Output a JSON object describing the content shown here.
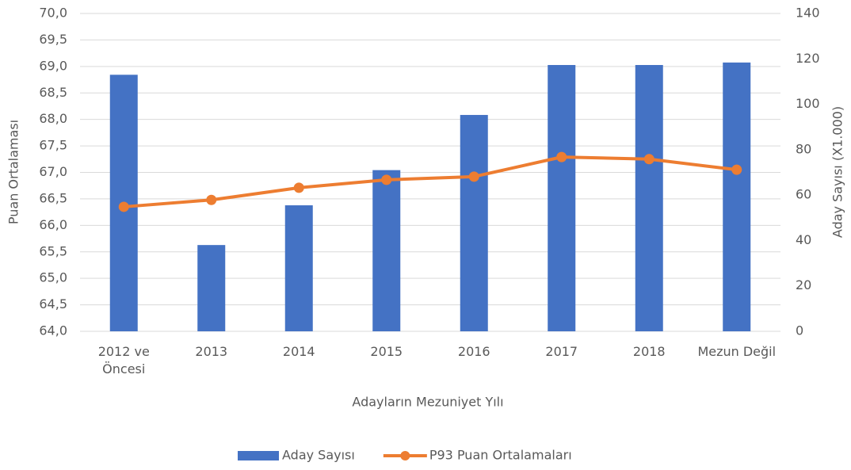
{
  "chart_data": {
    "type": "combo",
    "xlabel": "Adayların Mezuniyet Yılı",
    "ylabel": "Puan Ortalaması",
    "y2label": "Aday Sayısı (X1.000)",
    "categories": [
      "2012 ve Öncesi",
      "2013",
      "2014",
      "2015",
      "2016",
      "2017",
      "2018",
      "Mezun Değil"
    ],
    "series": [
      {
        "name": "Aday Sayısı",
        "type": "bar",
        "axis": "y2",
        "color": "#4472c4",
        "values": [
          113,
          38,
          55.5,
          71,
          95.3,
          117.3,
          117.3,
          118.4
        ]
      },
      {
        "name": "P93 Puan Ortalamaları",
        "type": "line",
        "color": "#ed7d31",
        "values": [
          66.35,
          66.48,
          66.71,
          66.86,
          66.92,
          67.29,
          67.25,
          67.05
        ]
      }
    ],
    "ylim": [
      64,
      70
    ],
    "yticks": [
      {
        "value": 64,
        "label": "64,0"
      },
      {
        "value": 64.5,
        "label": "64,5"
      },
      {
        "value": 65,
        "label": "65,0"
      },
      {
        "value": 65.5,
        "label": "65,5"
      },
      {
        "value": 66,
        "label": "66,0"
      },
      {
        "value": 66.5,
        "label": "66,5"
      },
      {
        "value": 67,
        "label": "67,0"
      },
      {
        "value": 67.5,
        "label": "67,5"
      },
      {
        "value": 68,
        "label": "68,0"
      },
      {
        "value": 68.5,
        "label": "68,5"
      },
      {
        "value": 69,
        "label": "69,0"
      },
      {
        "value": 69.5,
        "label": "69,5"
      },
      {
        "value": 70,
        "label": "70,0"
      }
    ],
    "y2lim": [
      0,
      140
    ],
    "y2ticks": [
      0,
      20,
      40,
      60,
      80,
      100,
      120,
      140
    ],
    "grid": true,
    "legend": "bottom"
  }
}
